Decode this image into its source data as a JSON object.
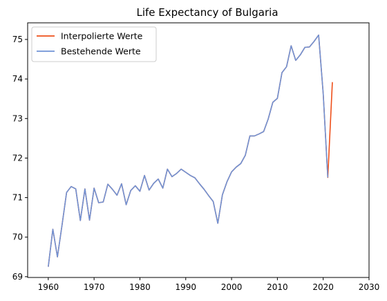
{
  "chart_data": {
    "type": "line",
    "title": "Life Expectancy of Bulgaria",
    "xlabel": "",
    "ylabel": "",
    "xlim": [
      1955.5,
      2030
    ],
    "ylim": [
      68.98,
      75.42
    ],
    "xticks": [
      1960,
      1970,
      1980,
      1990,
      2000,
      2010,
      2020,
      2030
    ],
    "yticks": [
      69,
      70,
      71,
      72,
      73,
      74,
      75
    ],
    "grid": false,
    "legend_position": "top-left",
    "series": [
      {
        "name": "Interpolierte Werte",
        "color": "#ee4f1a",
        "x": [
          1960,
          1961,
          1962,
          1963,
          1964,
          1965,
          1966,
          1967,
          1968,
          1969,
          1970,
          1971,
          1972,
          1973,
          1974,
          1975,
          1976,
          1977,
          1978,
          1979,
          1980,
          1981,
          1982,
          1983,
          1984,
          1985,
          1986,
          1987,
          1988,
          1989,
          1990,
          1991,
          1992,
          1993,
          1994,
          1995,
          1996,
          1997,
          1998,
          1999,
          2000,
          2001,
          2002,
          2003,
          2004,
          2005,
          2006,
          2007,
          2008,
          2009,
          2010,
          2011,
          2012,
          2013,
          2014,
          2015,
          2016,
          2017,
          2018,
          2019,
          2020,
          2021,
          2022
        ],
        "y": [
          69.25,
          70.2,
          69.5,
          70.3,
          71.13,
          71.28,
          71.22,
          70.42,
          71.22,
          70.43,
          71.24,
          70.87,
          70.89,
          71.34,
          71.21,
          71.06,
          71.35,
          70.82,
          71.18,
          71.3,
          71.16,
          71.56,
          71.19,
          71.36,
          71.47,
          71.24,
          71.72,
          71.53,
          71.61,
          71.72,
          71.64,
          71.56,
          71.5,
          71.35,
          71.21,
          71.05,
          70.9,
          70.35,
          71.07,
          71.4,
          71.65,
          71.77,
          71.86,
          72.07,
          72.56,
          72.56,
          72.61,
          72.67,
          72.99,
          73.41,
          73.51,
          74.16,
          74.31,
          74.84,
          74.47,
          74.61,
          74.8,
          74.81,
          74.95,
          75.11,
          73.63,
          71.51,
          73.92
        ]
      },
      {
        "name": "Bestehende Werte",
        "color": "#6f93d6",
        "x": [
          1960,
          1961,
          1962,
          1963,
          1964,
          1965,
          1966,
          1967,
          1968,
          1969,
          1970,
          1971,
          1972,
          1973,
          1974,
          1975,
          1976,
          1977,
          1978,
          1979,
          1980,
          1981,
          1982,
          1983,
          1984,
          1985,
          1986,
          1987,
          1988,
          1989,
          1990,
          1991,
          1992,
          1993,
          1994,
          1995,
          1996,
          1997,
          1998,
          1999,
          2000,
          2001,
          2002,
          2003,
          2004,
          2005,
          2006,
          2007,
          2008,
          2009,
          2010,
          2011,
          2012,
          2013,
          2014,
          2015,
          2016,
          2017,
          2018,
          2019,
          2020,
          2021
        ],
        "y": [
          69.25,
          70.2,
          69.5,
          70.3,
          71.13,
          71.28,
          71.22,
          70.42,
          71.22,
          70.43,
          71.24,
          70.87,
          70.89,
          71.34,
          71.21,
          71.06,
          71.35,
          70.82,
          71.18,
          71.3,
          71.16,
          71.56,
          71.19,
          71.36,
          71.47,
          71.24,
          71.72,
          71.53,
          71.61,
          71.72,
          71.64,
          71.56,
          71.5,
          71.35,
          71.21,
          71.05,
          70.9,
          70.35,
          71.07,
          71.4,
          71.65,
          71.77,
          71.86,
          72.07,
          72.56,
          72.56,
          72.61,
          72.67,
          72.99,
          73.41,
          73.51,
          74.16,
          74.31,
          74.84,
          74.47,
          74.61,
          74.8,
          74.81,
          74.95,
          75.11,
          73.63,
          71.51
        ]
      }
    ]
  }
}
